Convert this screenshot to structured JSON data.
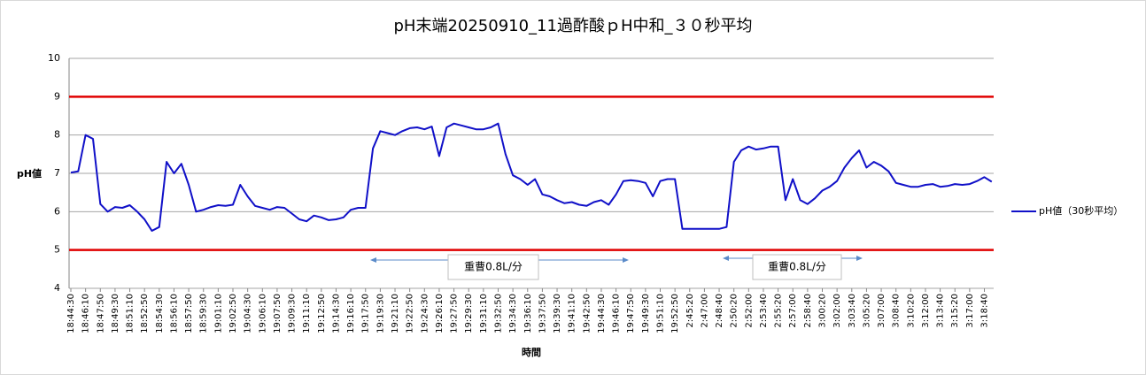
{
  "chart_data": {
    "type": "line",
    "title": "pH末端20250910_11過酢酸ｐH中和_３０秒平均",
    "y_label": "pH値",
    "x_label": "時間",
    "ylim": [
      4,
      10
    ],
    "yticks": [
      4,
      5,
      6,
      7,
      8,
      9,
      10
    ],
    "grid": true,
    "reference_lines": [
      9,
      5
    ],
    "reference_color": "#e00000",
    "legend": "right",
    "annotations": [
      "重曹0.8L/分",
      "重曹0.8L/分"
    ],
    "categories": [
      "18:44:30",
      null,
      "18:46:10",
      null,
      "18:47:50",
      null,
      "18:49:30",
      null,
      "18:51:10",
      null,
      "18:52:50",
      null,
      "18:54:30",
      null,
      "18:56:10",
      null,
      "18:57:50",
      null,
      "18:59:30",
      null,
      "19:01:10",
      null,
      "19:02:50",
      null,
      "19:04:30",
      null,
      "19:06:10",
      null,
      "19:07:50",
      null,
      "19:09:30",
      null,
      "19:11:10",
      null,
      "19:12:50",
      null,
      "19:14:30",
      null,
      "19:16:10",
      null,
      "19:17:50",
      null,
      "19:19:30",
      null,
      "19:21:10",
      null,
      "19:22:50",
      null,
      "19:24:30",
      null,
      "19:26:10",
      null,
      "19:27:50",
      null,
      "19:29:30",
      null,
      "19:31:10",
      null,
      "19:32:50",
      null,
      "19:34:30",
      null,
      "19:36:10",
      null,
      "19:37:50",
      null,
      "19:39:30",
      null,
      "19:41:10",
      null,
      "19:42:50",
      null,
      "19:44:30",
      null,
      "19:46:10",
      null,
      "19:47:50",
      null,
      "19:49:30",
      null,
      "19:51:10",
      null,
      "19:52:50",
      null,
      "2:45:20",
      null,
      "2:47:00",
      null,
      "2:48:40",
      null,
      "2:50:20",
      null,
      "2:52:00",
      null,
      "2:53:40",
      null,
      "2:55:20",
      null,
      "2:57:00",
      null,
      "2:58:40",
      null,
      "3:00:20",
      null,
      "3:02:00",
      null,
      "3:03:40",
      null,
      "3:05:20",
      null,
      "3:07:00",
      null,
      "3:08:40",
      null,
      "3:10:20",
      null,
      "3:12:00",
      null,
      "3:13:40",
      null,
      "3:15:20",
      null,
      "3:17:00",
      null,
      "3:18:40",
      null
    ],
    "series": [
      {
        "name": "pH値（30秒平均）",
        "color": "#1010c8",
        "values": [
          7.02,
          7.05,
          8.0,
          7.9,
          6.2,
          6.0,
          6.12,
          6.1,
          6.17,
          6.0,
          5.8,
          5.5,
          5.6,
          7.3,
          7.0,
          7.25,
          6.7,
          6.0,
          6.05,
          6.12,
          6.17,
          6.15,
          6.18,
          6.7,
          6.4,
          6.15,
          6.1,
          6.05,
          6.12,
          6.1,
          5.95,
          5.8,
          5.75,
          5.9,
          5.85,
          5.78,
          5.8,
          5.85,
          6.05,
          6.1,
          6.1,
          7.65,
          8.1,
          8.05,
          8.0,
          8.1,
          8.18,
          8.2,
          8.15,
          8.22,
          7.45,
          8.2,
          8.3,
          8.25,
          8.2,
          8.15,
          8.15,
          8.2,
          8.3,
          7.5,
          6.95,
          6.85,
          6.7,
          6.85,
          6.45,
          6.4,
          6.3,
          6.22,
          6.25,
          6.18,
          6.15,
          6.25,
          6.3,
          6.18,
          6.45,
          6.8,
          6.82,
          6.8,
          6.75,
          6.4,
          6.8,
          6.85,
          6.85,
          5.55,
          5.55,
          5.55,
          5.55,
          5.55,
          5.55,
          5.6,
          7.3,
          7.6,
          7.7,
          7.62,
          7.65,
          7.7,
          7.7,
          6.3,
          6.85,
          6.3,
          6.2,
          6.35,
          6.55,
          6.65,
          6.8,
          7.15,
          7.4,
          7.6,
          7.15,
          7.3,
          7.2,
          7.05,
          6.75,
          6.7,
          6.65,
          6.65,
          6.7,
          6.72,
          6.65,
          6.67,
          6.72,
          6.7,
          6.72,
          6.8,
          6.9,
          6.78
        ]
      }
    ]
  }
}
